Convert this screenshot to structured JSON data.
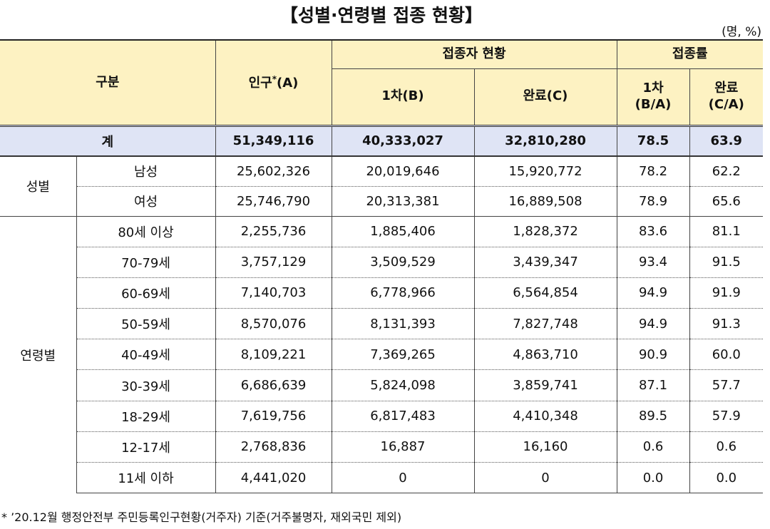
{
  "title": "【성별·연령별 접종 현황】",
  "unit": "(명, %)",
  "table": {
    "header": {
      "category": "구분",
      "population": {
        "text": "인구",
        "mark": "*",
        "suffix": "(A)"
      },
      "vaccinated": "접종자 현황",
      "rate": "접종률",
      "first": "1차(B)",
      "complete": "완료(C)",
      "first_rate": "1차\n(B/A)",
      "complete_rate": "완료\n(C/A)"
    },
    "total": {
      "label": "계",
      "values": [
        "51,349,116",
        "40,333,027",
        "32,810,280",
        "78.5",
        "63.9"
      ]
    },
    "groups": [
      {
        "label": "성별",
        "rows": [
          {
            "label": "남성",
            "values": [
              "25,602,326",
              "20,019,646",
              "15,920,772",
              "78.2",
              "62.2"
            ]
          },
          {
            "label": "여성",
            "values": [
              "25,746,790",
              "20,313,381",
              "16,889,508",
              "78.9",
              "65.6"
            ]
          }
        ]
      },
      {
        "label": "연령별",
        "rows": [
          {
            "label": "80세 이상",
            "values": [
              "2,255,736",
              "1,885,406",
              "1,828,372",
              "83.6",
              "81.1"
            ]
          },
          {
            "label": "70-79세",
            "values": [
              "3,757,129",
              "3,509,529",
              "3,439,347",
              "93.4",
              "91.5"
            ]
          },
          {
            "label": "60-69세",
            "values": [
              "7,140,703",
              "6,778,966",
              "6,564,854",
              "94.9",
              "91.9"
            ]
          },
          {
            "label": "50-59세",
            "values": [
              "8,570,076",
              "8,131,393",
              "7,827,748",
              "94.9",
              "91.3"
            ]
          },
          {
            "label": "40-49세",
            "values": [
              "8,109,221",
              "7,369,265",
              "4,863,710",
              "90.9",
              "60.0"
            ]
          },
          {
            "label": "30-39세",
            "values": [
              "6,686,639",
              "5,824,098",
              "3,859,741",
              "87.1",
              "57.7"
            ]
          },
          {
            "label": "18-29세",
            "values": [
              "7,619,756",
              "6,817,483",
              "4,410,348",
              "89.5",
              "57.9"
            ]
          },
          {
            "label": "12-17세",
            "values": [
              "2,768,836",
              "16,887",
              "16,160",
              "0.6",
              "0.6"
            ]
          },
          {
            "label": "11세 이하",
            "values": [
              "4,441,020",
              "0",
              "0",
              "0.0",
              "0.0"
            ]
          }
        ]
      }
    ]
  },
  "footnote": "* ’20.12월 행정안전부 주민등록인구현황(거주자) 기준(거주불명자, 재외국민 제외)"
}
